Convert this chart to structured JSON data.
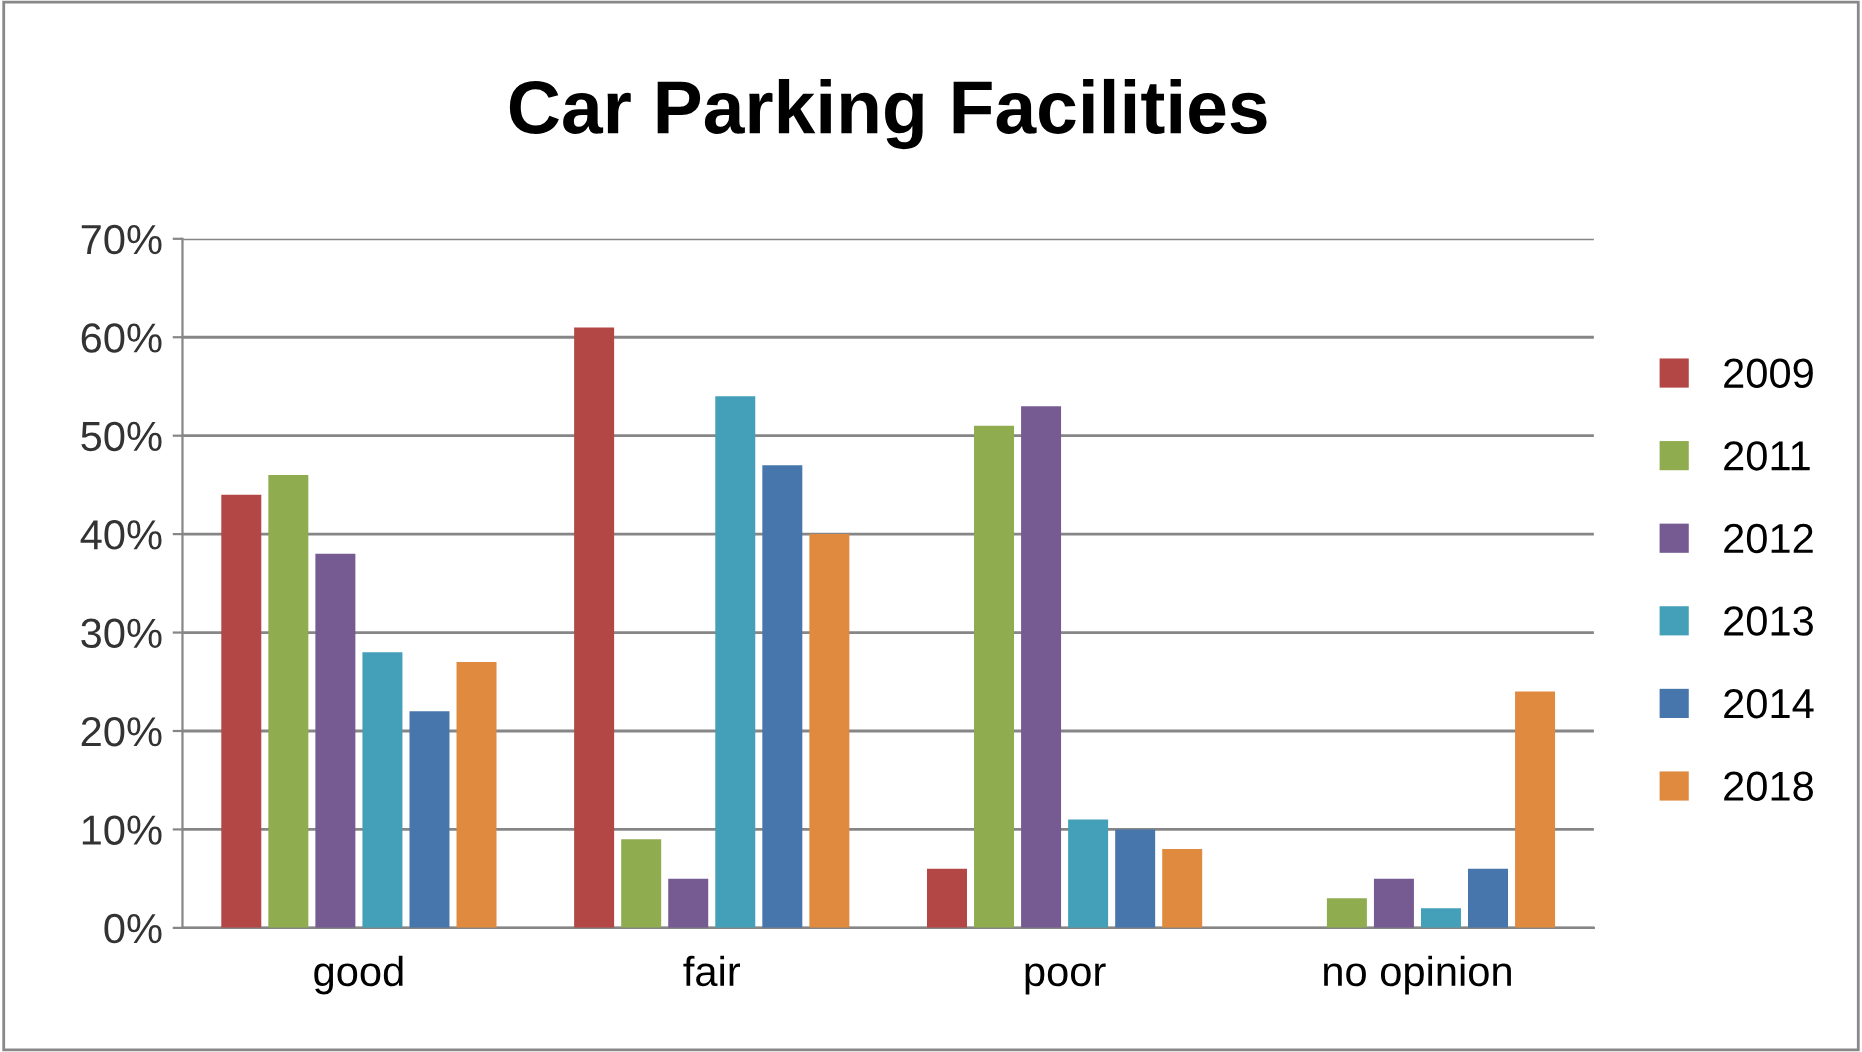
{
  "chart_data": {
    "type": "bar",
    "title": "Car Parking Facilities",
    "categories": [
      "good",
      "fair",
      "poor",
      "no opinion"
    ],
    "series": [
      {
        "name": "2009",
        "color": "#b24745",
        "values": [
          44,
          61,
          6,
          0
        ]
      },
      {
        "name": "2011",
        "color": "#8fac4f",
        "values": [
          46,
          9,
          51,
          3
        ]
      },
      {
        "name": "2012",
        "color": "#765a92",
        "values": [
          38,
          5,
          53,
          5
        ]
      },
      {
        "name": "2013",
        "color": "#43a0b8",
        "values": [
          28,
          54,
          11,
          2
        ]
      },
      {
        "name": "2014",
        "color": "#4776ad",
        "values": [
          22,
          47,
          10,
          6
        ]
      },
      {
        "name": "2018",
        "color": "#e08a3f",
        "values": [
          27,
          40,
          8,
          24
        ]
      }
    ],
    "ylim": [
      0,
      70
    ],
    "yticks": [
      {
        "value": 0,
        "label": "0%"
      },
      {
        "value": 10,
        "label": "10%"
      },
      {
        "value": 20,
        "label": "20%"
      },
      {
        "value": 30,
        "label": "30%"
      },
      {
        "value": 40,
        "label": "40%"
      },
      {
        "value": 50,
        "label": "50%"
      },
      {
        "value": 60,
        "label": "60%"
      },
      {
        "value": 70,
        "label": "70%"
      }
    ],
    "grid": "y",
    "legend": "right"
  }
}
